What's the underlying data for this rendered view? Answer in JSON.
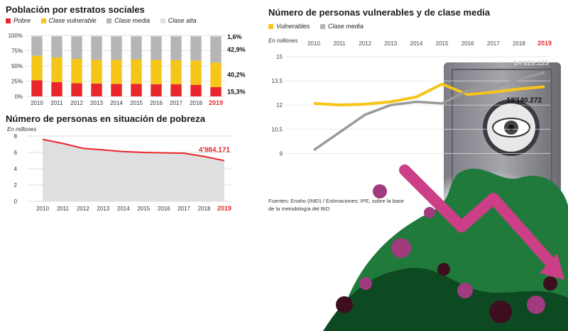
{
  "chart_data": [
    {
      "type": "bar",
      "stacked": true,
      "percent": true,
      "title": "Población por estratos sociales",
      "categories": [
        "2010",
        "2011",
        "2012",
        "2013",
        "2014",
        "2015",
        "2016",
        "2017",
        "2018",
        "2019"
      ],
      "highlight_category": "2019",
      "series": [
        {
          "name": "Pobre",
          "color": "#e8262b",
          "values": [
            26.5,
            23.5,
            21.5,
            21,
            20.5,
            20.5,
            20,
            20,
            19,
            15.3
          ]
        },
        {
          "name": "Clase vulnerable",
          "color": "#f5c518",
          "values": [
            40,
            40.5,
            40,
            39,
            39.5,
            40,
            40,
            39.5,
            40,
            40.2
          ]
        },
        {
          "name": "Clase media",
          "color": "#b5b5b5",
          "values": [
            32,
            34.5,
            37,
            38.5,
            38.5,
            38,
            38.5,
            39,
            39.5,
            42.9
          ]
        },
        {
          "name": "Clase alta",
          "color": "#e0e0e0",
          "values": [
            1.5,
            1.5,
            1.5,
            1.5,
            1.5,
            1.5,
            1.5,
            1.5,
            1.5,
            1.6
          ]
        }
      ],
      "yticks": [
        "0%",
        "25%",
        "50%",
        "75%",
        "100%"
      ],
      "ylim": [
        0,
        100
      ],
      "value_labels": [
        "1,6%",
        "42,9%",
        "40,2%",
        "15,3%"
      ],
      "grid": true,
      "legend_position": "top"
    },
    {
      "type": "area",
      "title": "Número de personas en situación de pobreza",
      "unit": "En millones",
      "x": [
        "2010",
        "2011",
        "2012",
        "2013",
        "2014",
        "2015",
        "2016",
        "2017",
        "2018",
        "2019"
      ],
      "values": [
        7.6,
        7.1,
        6.5,
        6.3,
        6.1,
        6.0,
        5.95,
        5.9,
        5.5,
        4.984
      ],
      "yticks": [
        "0",
        "2",
        "4",
        "6",
        "8"
      ],
      "ylim": [
        0,
        8
      ],
      "end_label": "4'984.171",
      "line_color": "#e8262b",
      "fill_color": "#dcdcdc",
      "grid": true
    },
    {
      "type": "line",
      "title": "Número de personas vulnerables y de clase media",
      "unit": "En millones",
      "x": [
        "2010",
        "2011",
        "2012",
        "2013",
        "2014",
        "2015",
        "2016",
        "2017",
        "2018",
        "2019"
      ],
      "series": [
        {
          "name": "Vulnerables",
          "color": "#f5c518",
          "values": [
            12.1,
            12.0,
            12.05,
            12.2,
            12.5,
            13.3,
            12.65,
            12.8,
            13.0,
            13.14
          ]
        },
        {
          "name": "Clase media",
          "color": "#9a9a9a",
          "values": [
            9.2,
            10.3,
            11.4,
            12.0,
            12.2,
            12.1,
            12.9,
            13.1,
            13.6,
            14.029
          ]
        }
      ],
      "yticks": [
        "9",
        "10,5",
        "12",
        "13,5",
        "15"
      ],
      "ylim": [
        8.4,
        15
      ],
      "end_labels": [
        "14'029.125",
        "13'140.272"
      ],
      "grid": true,
      "legend_position": "top-left"
    }
  ],
  "legend1": {
    "items": [
      {
        "name": "Pobre",
        "color": "#e8262b"
      },
      {
        "name": "Clase vulnerable",
        "color": "#f5c518"
      },
      {
        "name": "Clase media",
        "color": "#b5b5b5"
      },
      {
        "name": "Clase alta",
        "color": "#e0e0e0"
      }
    ]
  },
  "legend3": {
    "items": [
      {
        "name": "Vulnerables",
        "color": "#f5c518"
      },
      {
        "name": "Clase media",
        "color": "#b5b5b5"
      }
    ]
  },
  "source": "Fuentes: Enaho (INEI) / Estimaciones: IPE, sobre la base de la metodología del BID",
  "colors": {
    "accent_red": "#e8262b",
    "yellow": "#f5c518",
    "gray": "#b5b5b5"
  }
}
